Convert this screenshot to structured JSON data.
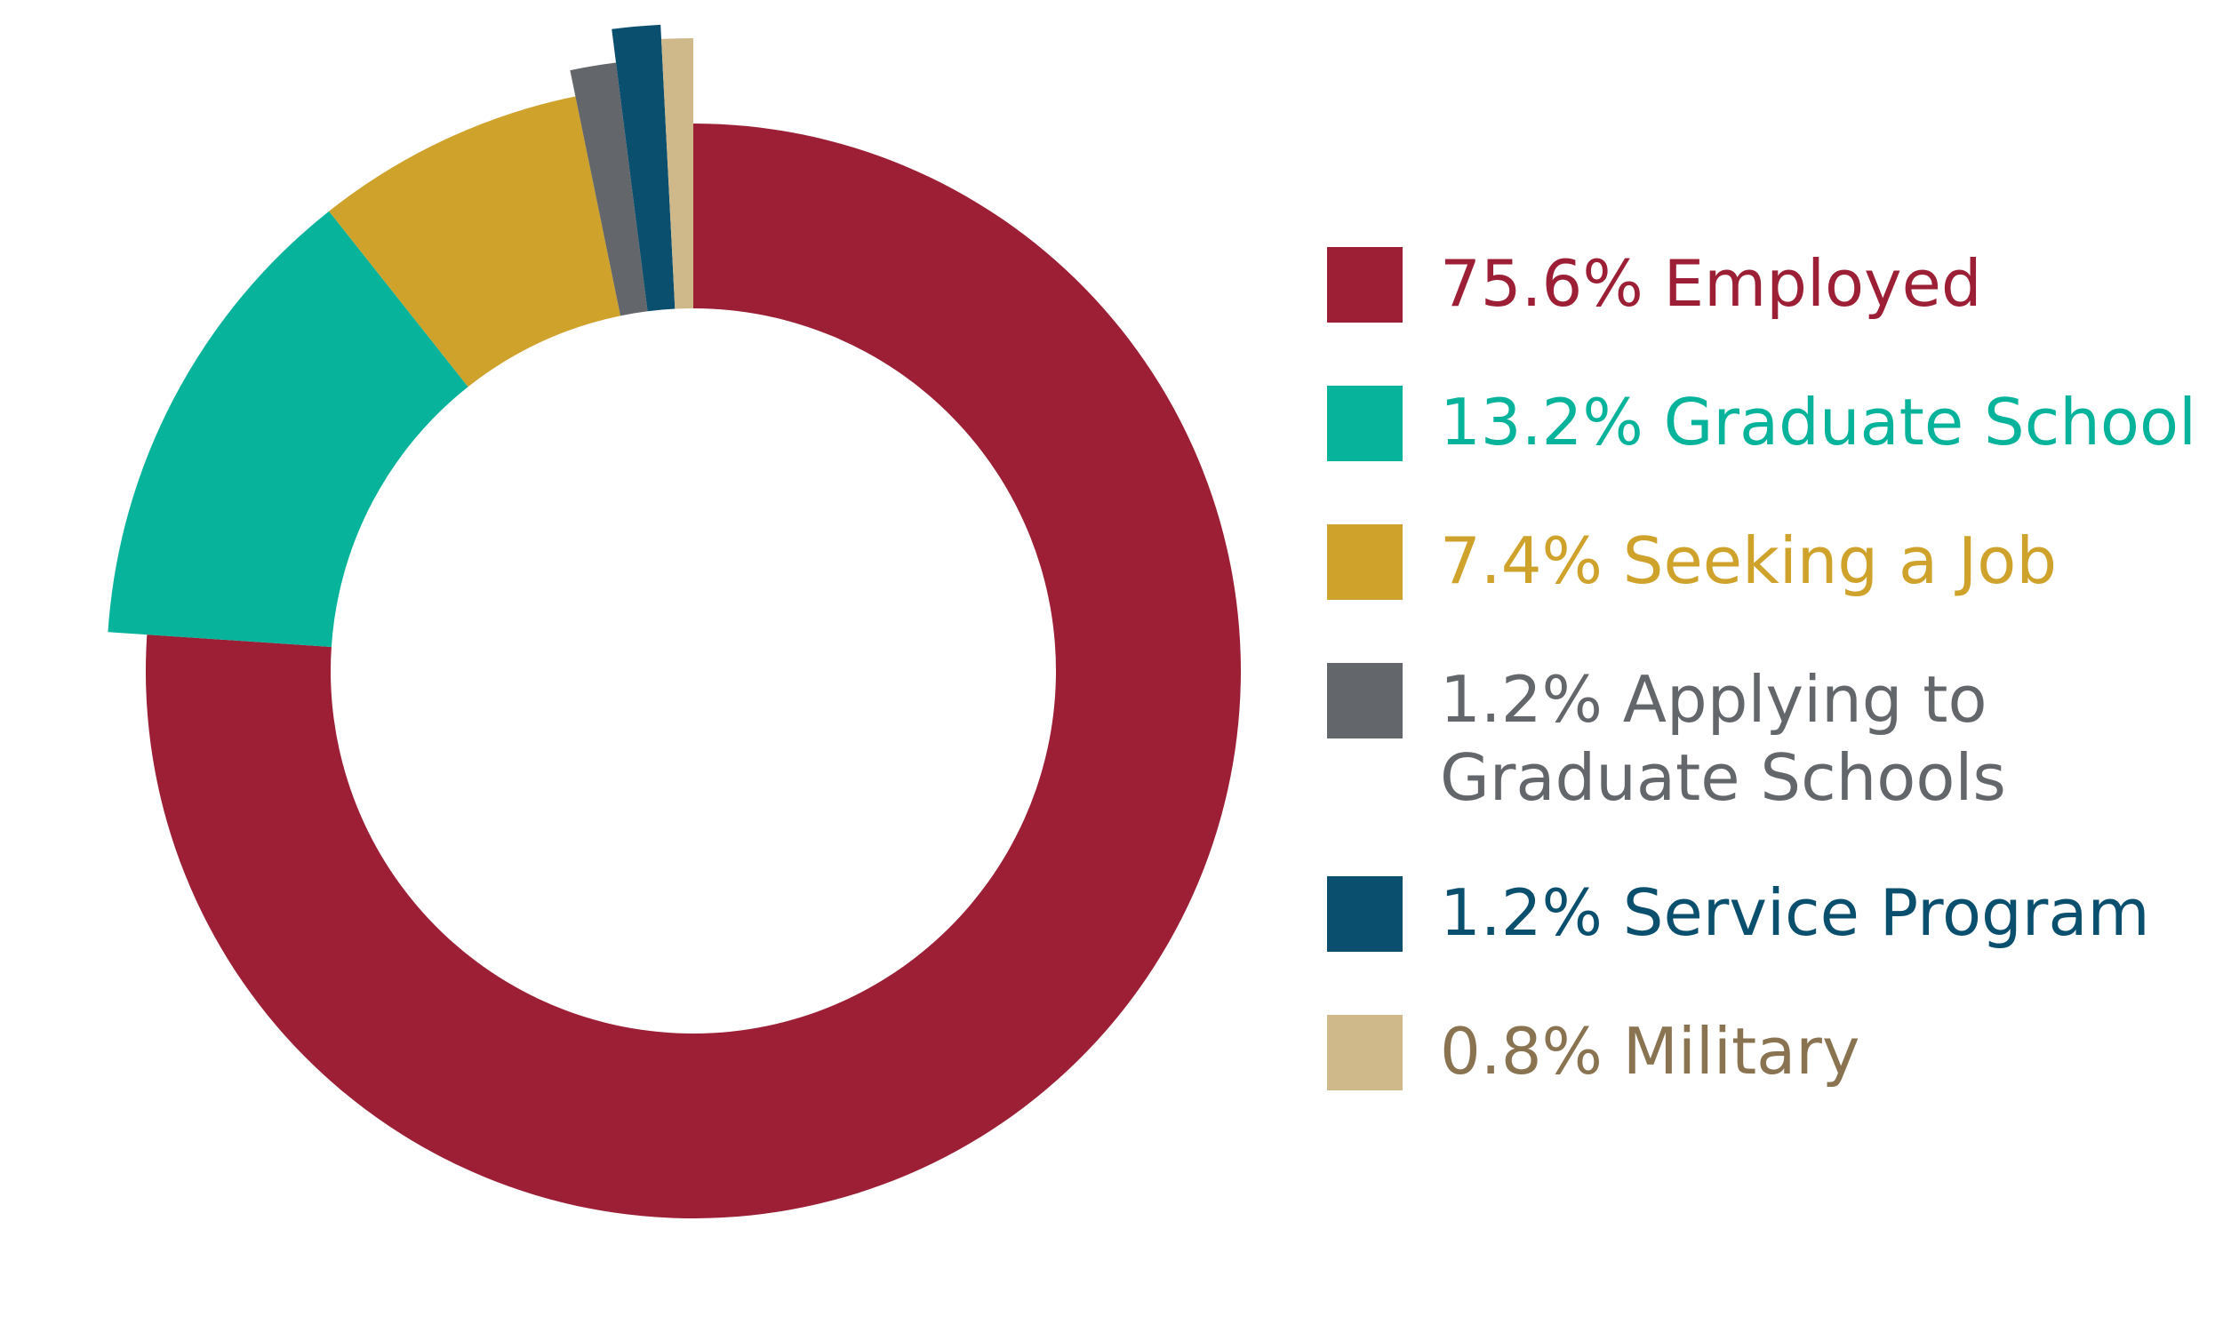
{
  "chart_data": {
    "type": "pie",
    "style": "donut with slightly exploded outer radii",
    "title": "",
    "legend_position": "right",
    "slices": [
      {
        "legend_lines": [
          "75.6% Employed"
        ],
        "percent": 75.6,
        "color": "#9c1f35"
      },
      {
        "legend_lines": [
          "13.2% Graduate School"
        ],
        "percent": 13.2,
        "color": "#08b39b"
      },
      {
        "legend_lines": [
          "7.4% Seeking a Job"
        ],
        "percent": 7.4,
        "color": "#cfa22b"
      },
      {
        "legend_lines": [
          "1.2% Applying to",
          "Graduate Schools"
        ],
        "percent": 1.2,
        "color": "#63666b"
      },
      {
        "legend_lines": [
          "1.2% Service Program"
        ],
        "percent": 1.2,
        "color": "#0b4f6e"
      },
      {
        "legend_lines": [
          "0.8% Military"
        ],
        "percent": 0.8,
        "color": "#cfb98b",
        "text_color": "#8a7351"
      }
    ]
  }
}
